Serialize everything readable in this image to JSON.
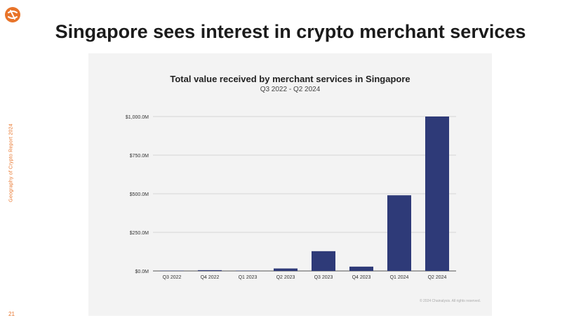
{
  "page": {
    "side_label": "Geography of Crypto Report 2024",
    "page_number": "21",
    "title": "Singapore sees interest in crypto merchant services",
    "brand_color": "#e8742a",
    "logo_icon": "chainalysis-logo-icon"
  },
  "panel": {
    "copyright": "© 2024 Chainalysis. All rights reserved."
  },
  "chart_data": {
    "type": "bar",
    "title": "Total value received by merchant services in Singapore",
    "subtitle": "Q3 2022 - Q2 2024",
    "categories": [
      "Q3 2022",
      "Q4 2022",
      "Q1 2023",
      "Q2 2023",
      "Q3 2023",
      "Q4 2023",
      "Q1 2024",
      "Q2 2024"
    ],
    "values": [
      2,
      5,
      2,
      16,
      128,
      28,
      490,
      1000
    ],
    "ylim": [
      0,
      1000
    ],
    "yticks": [
      0,
      250,
      500,
      750,
      1000
    ],
    "ytick_labels": [
      "$0.0M",
      "$250.0M",
      "$500.0M",
      "$750.0M",
      "$1,000.0M"
    ],
    "xlabel": "",
    "ylabel": "",
    "bar_color": "#2e3a78",
    "grid": true
  }
}
